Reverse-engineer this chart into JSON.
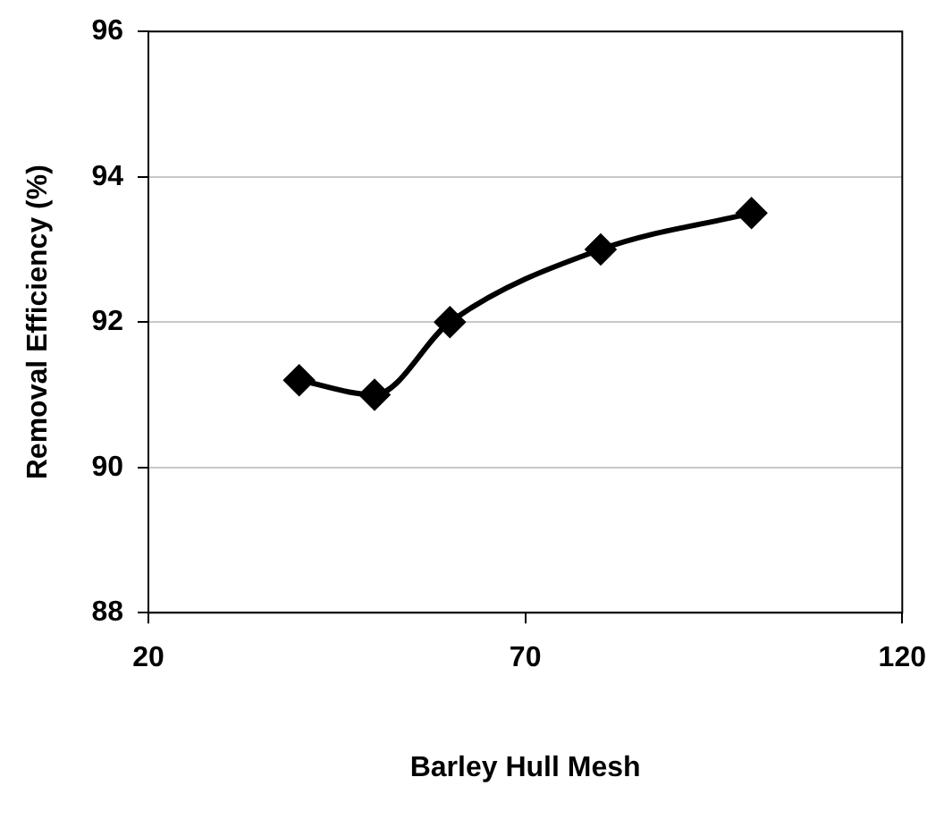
{
  "chart_data": {
    "type": "line",
    "xlabel": "Barley Hull Mesh",
    "ylabel": "Removal Efficiency (%)",
    "x": [
      40,
      50,
      60,
      80,
      100
    ],
    "series": [
      {
        "color": "#000000",
        "values": [
          91.2,
          91.0,
          92.0,
          93.0,
          93.5
        ]
      }
    ],
    "xlim": [
      20,
      120
    ],
    "xticks": [
      20,
      70,
      120
    ],
    "ylim": [
      88,
      96
    ],
    "yticks": [
      88,
      90,
      92,
      94,
      96
    ],
    "grid": "y",
    "legend": false,
    "marker": "diamond",
    "line_style": "solid"
  }
}
